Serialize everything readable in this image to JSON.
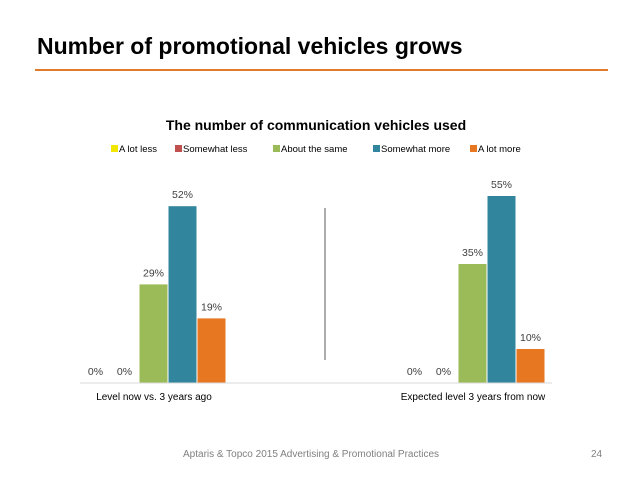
{
  "slide": {
    "title": "Number of promotional vehicles grows",
    "footer": "Aptaris & Topco 2015 Advertising & Promotional Practices",
    "page_number": "24"
  },
  "colors": {
    "accent": "#e07b2c",
    "series": [
      "#f2e700",
      "#c0504d",
      "#9bbb59",
      "#31859c",
      "#e87722"
    ]
  },
  "chart_data": {
    "type": "bar",
    "title": "The number of communication vehicles used",
    "categories": [
      "Level now vs. 3 years ago",
      "Expected level 3 years from now"
    ],
    "series": [
      {
        "name": "A lot less",
        "values": [
          0,
          0
        ]
      },
      {
        "name": "Somewhat less",
        "values": [
          0,
          0
        ]
      },
      {
        "name": "About the same",
        "values": [
          29,
          35
        ]
      },
      {
        "name": "Somewhat more",
        "values": [
          52,
          55
        ]
      },
      {
        "name": "A lot more",
        "values": [
          19,
          10
        ]
      }
    ],
    "data_labels": [
      [
        "0%",
        "0%"
      ],
      [
        "0%",
        "0%"
      ],
      [
        "29%",
        "35%"
      ],
      [
        "52%",
        "55%"
      ],
      [
        "19%",
        "10%"
      ]
    ],
    "unit": "%",
    "ylim": [
      0,
      60
    ],
    "grid": false,
    "legend": "top"
  }
}
